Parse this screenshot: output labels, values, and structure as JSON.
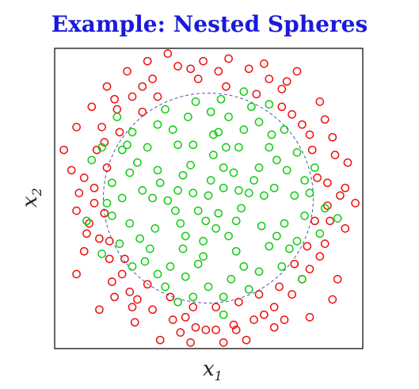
{
  "title": "Example: Nested Spheres",
  "colors": {
    "title": "#1a1adb",
    "class_outer": "#ee1111",
    "class_inner": "#11cc11",
    "boundary": "#5555aa",
    "frame": "#111111"
  },
  "chart_data": {
    "type": "scatter",
    "title": "Example: Nested Spheres",
    "xlabel": "x",
    "xlabel_sub": "1",
    "ylabel": "x",
    "ylabel_sub": "2",
    "xlim": [
      -3.2,
      3.2
    ],
    "ylim": [
      -3.2,
      3.2
    ],
    "grid": false,
    "legend": "none",
    "marker": "open-circle",
    "boundary": {
      "shape": "circle",
      "style": "dashed",
      "radius": 2.07
    },
    "series": [
      {
        "class": "outer",
        "color": "#ee1111",
        "points": [
          [
            1.75,
            2.5
          ],
          [
            1.55,
            2.3
          ],
          [
            2.2,
            1.9
          ],
          [
            2.3,
            1.55
          ],
          [
            2.5,
            0.85
          ],
          [
            2.35,
            0.3
          ],
          [
            2.6,
            0.05
          ],
          [
            2.4,
            -0.45
          ],
          [
            2.2,
            -1.15
          ],
          [
            2.0,
            -1.4
          ],
          [
            1.85,
            -1.6
          ],
          [
            1.65,
            -1.9
          ],
          [
            1.3,
            -2.15
          ],
          [
            0.9,
            -2.4
          ],
          [
            0.5,
            -2.5
          ],
          [
            0.15,
            -2.6
          ],
          [
            -0.25,
            -2.55
          ],
          [
            -0.7,
            -2.4
          ],
          [
            -1.1,
            -2.2
          ],
          [
            -1.4,
            -2.0
          ],
          [
            -1.55,
            -1.85
          ],
          [
            -1.7,
            -1.5
          ],
          [
            -1.95,
            -1.2
          ],
          [
            -2.15,
            -0.8
          ],
          [
            -2.35,
            -0.5
          ],
          [
            -2.25,
            -0.1
          ],
          [
            -2.45,
            0.4
          ],
          [
            -2.2,
            0.95
          ],
          [
            -2.1,
            1.4
          ],
          [
            -1.8,
            1.75
          ],
          [
            -1.5,
            2.0
          ],
          [
            -1.1,
            2.35
          ],
          [
            -0.6,
            2.6
          ],
          [
            -0.1,
            2.7
          ],
          [
            0.4,
            2.75
          ],
          [
            0.8,
            2.55
          ],
          [
            1.2,
            2.35
          ],
          [
            0.95,
            2.05
          ],
          [
            -0.2,
            2.35
          ],
          [
            0.2,
            2.5
          ],
          [
            -1.0,
            2.0
          ],
          [
            -1.3,
            1.7
          ],
          [
            -1.75,
            1.3
          ],
          [
            -2.0,
            0.6
          ],
          [
            -2.05,
            -0.3
          ],
          [
            -1.95,
            -0.85
          ],
          [
            -1.65,
            -1.2
          ],
          [
            -1.2,
            -1.7
          ],
          [
            -0.75,
            -1.95
          ],
          [
            -0.3,
            -2.15
          ],
          [
            0.15,
            -2.15
          ],
          [
            0.6,
            -2.05
          ],
          [
            1.0,
            -1.9
          ],
          [
            1.4,
            -1.75
          ],
          [
            1.7,
            -1.3
          ],
          [
            1.95,
            -0.95
          ],
          [
            2.1,
            -0.45
          ],
          [
            2.15,
            0.4
          ],
          [
            2.05,
            0.95
          ],
          [
            1.85,
            1.45
          ],
          [
            1.45,
            1.8
          ],
          [
            2.7,
            0.2
          ],
          [
            2.9,
            -0.1
          ],
          [
            2.7,
            -0.6
          ],
          [
            2.55,
            -1.6
          ],
          [
            2.45,
            -2.0
          ],
          [
            2.0,
            -2.35
          ],
          [
            1.5,
            -2.4
          ],
          [
            0.75,
            -2.8
          ],
          [
            0.3,
            -2.85
          ],
          [
            -0.35,
            -2.85
          ],
          [
            -0.95,
            -2.8
          ],
          [
            -1.45,
            -2.45
          ],
          [
            -2.15,
            -2.2
          ],
          [
            -2.6,
            -1.5
          ],
          [
            -2.45,
            -1.05
          ],
          [
            -2.6,
            -0.25
          ],
          [
            -2.7,
            0.55
          ],
          [
            -2.85,
            0.95
          ],
          [
            -2.6,
            1.4
          ],
          [
            -2.3,
            1.8
          ],
          [
            -2.0,
            2.2
          ],
          [
            -1.6,
            2.5
          ],
          [
            -1.2,
            2.7
          ],
          [
            -0.8,
            2.85
          ],
          [
            0.1,
            3.05
          ],
          [
            0.65,
            2.9
          ],
          [
            1.1,
            2.65
          ],
          [
            1.45,
            2.15
          ],
          [
            2.0,
            1.25
          ],
          [
            2.45,
            1.2
          ],
          [
            2.75,
            0.7
          ],
          [
            0.55,
            -2.6
          ],
          [
            -0.55,
            -2.65
          ],
          [
            -1.85,
            -1.95
          ],
          [
            -2.25,
            0.2
          ],
          [
            -1.85,
            1.95
          ],
          [
            -0.35,
            2.55
          ],
          [
            1.3,
            -2.55
          ],
          [
            2.3,
            -0.9
          ],
          [
            -2.4,
            -0.7
          ],
          [
            -1.9,
            -1.65
          ],
          [
            -1.3,
            2.2
          ],
          [
            -0.05,
            -2.6
          ],
          [
            0.35,
            2.2
          ],
          [
            1.65,
            1.65
          ],
          [
            -2.55,
            0.1
          ],
          [
            1.1,
            -2.3
          ],
          [
            -0.45,
            -2.35
          ],
          [
            -2.05,
            1.1
          ],
          [
            2.35,
            -0.15
          ],
          [
            -1.5,
            -2.15
          ]
        ]
      },
      {
        "class": "inner",
        "color": "#11cc11",
        "points": [
          [
            0.0,
            0.05
          ],
          [
            0.3,
            0.2
          ],
          [
            -0.3,
            0.1
          ],
          [
            0.2,
            -0.3
          ],
          [
            -0.2,
            -0.25
          ],
          [
            0.5,
            0.5
          ],
          [
            -0.5,
            0.45
          ],
          [
            0.55,
            -0.45
          ],
          [
            -0.55,
            -0.5
          ],
          [
            0.8,
            0.1
          ],
          [
            -0.8,
            -0.05
          ],
          [
            0.1,
            0.85
          ],
          [
            -0.1,
            -0.85
          ],
          [
            1.0,
            0.6
          ],
          [
            -1.0,
            0.55
          ],
          [
            1.05,
            -0.55
          ],
          [
            -1.05,
            -0.6
          ],
          [
            0.6,
            1.0
          ],
          [
            -0.6,
            1.05
          ],
          [
            0.55,
            -1.05
          ],
          [
            -0.5,
            -1.0
          ],
          [
            1.3,
            0.2
          ],
          [
            -1.3,
            0.15
          ],
          [
            0.2,
            1.3
          ],
          [
            -0.2,
            -1.3
          ],
          [
            1.2,
            1.0
          ],
          [
            -1.2,
            1.0
          ],
          [
            1.2,
            -0.95
          ],
          [
            -1.15,
            -1.0
          ],
          [
            1.55,
            0.55
          ],
          [
            -1.55,
            0.5
          ],
          [
            1.5,
            -0.5
          ],
          [
            -1.55,
            -0.5
          ],
          [
            0.4,
            1.6
          ],
          [
            -0.4,
            1.6
          ],
          [
            0.45,
            -1.6
          ],
          [
            -0.45,
            -1.55
          ],
          [
            1.7,
            0.05
          ],
          [
            -1.7,
            0.0
          ],
          [
            0.05,
            1.7
          ],
          [
            0.0,
            -1.75
          ],
          [
            1.0,
            1.5
          ],
          [
            -1.0,
            1.45
          ],
          [
            1.0,
            -1.45
          ],
          [
            -1.0,
            -1.5
          ],
          [
            1.75,
            0.9
          ],
          [
            -1.7,
            0.95
          ],
          [
            1.75,
            -0.85
          ],
          [
            -1.75,
            -0.9
          ],
          [
            0.85,
            1.8
          ],
          [
            -0.85,
            1.75
          ],
          [
            0.8,
            -1.8
          ],
          [
            -0.85,
            -1.75
          ],
          [
            0.3,
            0.6
          ],
          [
            -0.35,
            0.65
          ],
          [
            0.65,
            -0.2
          ],
          [
            -0.65,
            -0.25
          ],
          [
            0.15,
            -0.6
          ],
          [
            0.4,
            -0.75
          ],
          [
            -0.45,
            -0.75
          ],
          [
            0.9,
            0.35
          ],
          [
            -0.95,
            0.3
          ],
          [
            0.35,
            1.0
          ],
          [
            -0.3,
            1.05
          ],
          [
            1.35,
            0.75
          ],
          [
            -1.4,
            0.7
          ],
          [
            1.35,
            -0.75
          ],
          [
            -1.35,
            -0.8
          ],
          [
            0.7,
            1.35
          ],
          [
            -0.7,
            1.35
          ],
          [
            0.7,
            -1.35
          ],
          [
            -0.75,
            -1.35
          ],
          [
            1.9,
            0.35
          ],
          [
            -1.9,
            0.3
          ],
          [
            1.9,
            -0.35
          ],
          [
            -1.9,
            -0.35
          ],
          [
            0.25,
            1.95
          ],
          [
            -0.25,
            1.9
          ],
          [
            0.3,
            -1.95
          ],
          [
            -0.3,
            -1.95
          ],
          [
            1.5,
            1.35
          ],
          [
            -1.5,
            1.3
          ],
          [
            1.45,
            -1.35
          ],
          [
            -1.5,
            -1.35
          ],
          [
            2.1,
            0.6
          ],
          [
            2.2,
            -0.7
          ],
          [
            -2.1,
            1.0
          ],
          [
            -2.1,
            -1.1
          ],
          [
            0.7,
            2.1
          ],
          [
            1.2,
            1.85
          ],
          [
            -0.6,
            -2.05
          ],
          [
            0.3,
            -2.3
          ],
          [
            2.3,
            -0.2
          ],
          [
            2.55,
            -0.4
          ],
          [
            -2.3,
            0.75
          ],
          [
            -2.4,
            -0.45
          ],
          [
            -1.8,
            1.6
          ],
          [
            1.85,
            -1.6
          ],
          [
            0.05,
            0.35
          ],
          [
            -0.05,
            -0.45
          ],
          [
            0.6,
            0.15
          ],
          [
            -0.6,
            0.15
          ],
          [
            1.1,
            0.05
          ],
          [
            -1.1,
            0.0
          ],
          [
            0.1,
            1.25
          ],
          [
            -0.1,
            -1.15
          ],
          [
            1.25,
            1.25
          ],
          [
            -1.25,
            -1.25
          ],
          [
            1.6,
            -1.0
          ],
          [
            -1.6,
            1.05
          ],
          [
            2.0,
            0.1
          ],
          [
            -2.0,
            -0.1
          ]
        ]
      }
    ]
  }
}
